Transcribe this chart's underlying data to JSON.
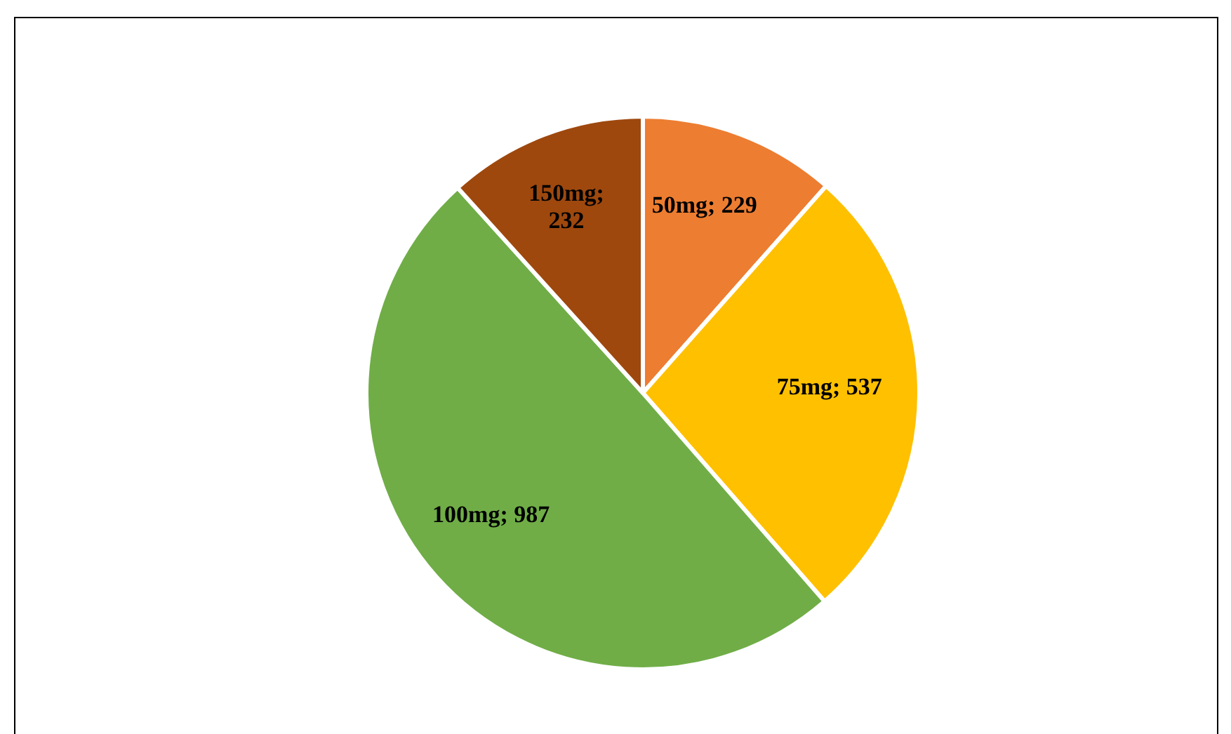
{
  "chart_data": {
    "type": "pie",
    "values": [
      229,
      537,
      987,
      232
    ],
    "colors": [
      "#ed7d31",
      "#ffc000",
      "#70ad47",
      "#9e480e"
    ],
    "value_labels": [
      "50mg; 229",
      "75mg; 537",
      "100mg; 987",
      "150mg; 232"
    ],
    "legend": false
  }
}
